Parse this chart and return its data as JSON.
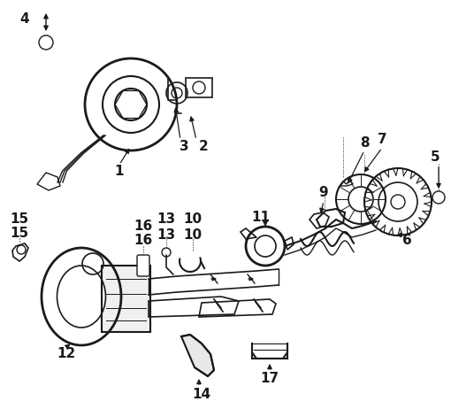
{
  "background_color": "#ffffff",
  "line_color": "#1a1a1a",
  "line_width": 1.3,
  "figsize": [
    5.36,
    4.62
  ],
  "dpi": 100
}
